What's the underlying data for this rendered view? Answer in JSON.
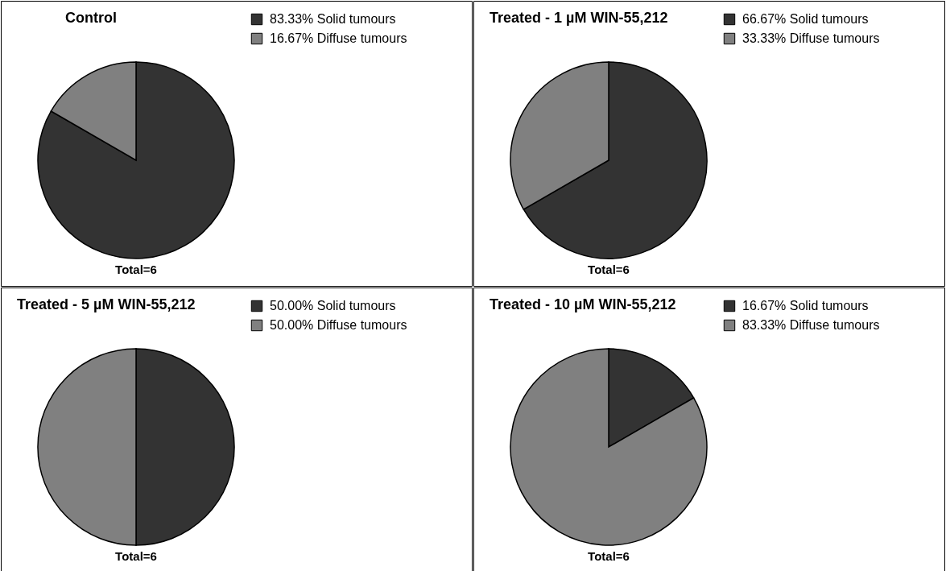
{
  "chart_data": [
    {
      "type": "pie",
      "title": "Control",
      "categories": [
        "Solid tumours",
        "Diffuse tumours"
      ],
      "values": [
        83.33,
        16.67
      ],
      "colors": [
        "#333333",
        "#808080"
      ],
      "value_labels": [
        "83.33%",
        "16.67%"
      ],
      "legend": "top right",
      "annotations": [
        "Total=6"
      ]
    },
    {
      "type": "pie",
      "title": "Treated - 1 µM WIN-55,212",
      "categories": [
        "Solid tumours",
        "Diffuse tumours"
      ],
      "values": [
        66.67,
        33.33
      ],
      "colors": [
        "#333333",
        "#808080"
      ],
      "value_labels": [
        "66.67%",
        "33.33%"
      ],
      "legend": "top right",
      "annotations": [
        "Total=6"
      ]
    },
    {
      "type": "pie",
      "title": "Treated - 5 µM WIN-55,212",
      "categories": [
        "Solid tumours",
        "Diffuse tumours"
      ],
      "values": [
        50.0,
        50.0
      ],
      "colors": [
        "#333333",
        "#808080"
      ],
      "value_labels": [
        "50.00%",
        "50.00%"
      ],
      "legend": "top right",
      "annotations": [
        "Total=6"
      ]
    },
    {
      "type": "pie",
      "title": "Treated - 10 µM WIN-55,212",
      "categories": [
        "Solid tumours",
        "Diffuse tumours"
      ],
      "values": [
        16.67,
        83.33
      ],
      "colors": [
        "#333333",
        "#808080"
      ],
      "value_labels": [
        "16.67%",
        "83.33%"
      ],
      "legend": "top right",
      "annotations": [
        "Total=6"
      ]
    }
  ]
}
